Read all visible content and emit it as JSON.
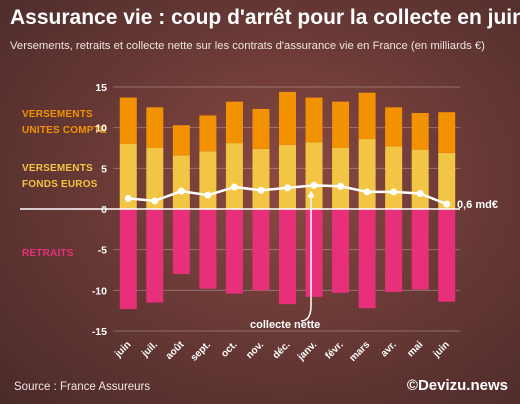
{
  "header": {
    "title": "Assurance vie : coup d'arrêt pour la collecte en juin",
    "subtitle": "Versements, retraits et collecte nette sur les contrats d'assurance vie en France (en milliards €)"
  },
  "legend_labels": {
    "versements_uc_line1": "VERSEMENTS",
    "versements_uc_line2": "UNITES COMPTE",
    "versements_fe_line1": "VERSEMENTS",
    "versements_fe_line2": "FONDS EUROS",
    "retraits": "RETRAITS"
  },
  "annotations": {
    "collecte_nette": "collecte nette",
    "last_value": "0,6 md€"
  },
  "footer": {
    "source": "Source : France Assureurs",
    "brand": "©Devizu.news"
  },
  "colors": {
    "unites_compte": "#f39200",
    "fonds_euros": "#f2c544",
    "retraits": "#e8307a",
    "collecte_nette": "#ffffff"
  },
  "chart_data": {
    "type": "bar",
    "categories": [
      "juin",
      "juil.",
      "août",
      "sept.",
      "oct.",
      "nov.",
      "déc.",
      "janv.",
      "févr.",
      "mars",
      "avr.",
      "mai",
      "juin"
    ],
    "series": [
      {
        "name": "VERSEMENTS FONDS EUROS",
        "values": [
          8.0,
          7.5,
          6.6,
          7.1,
          8.1,
          7.4,
          7.9,
          8.2,
          7.5,
          8.6,
          7.7,
          7.3,
          6.9
        ]
      },
      {
        "name": "VERSEMENTS UNITES COMPTE",
        "values": [
          5.7,
          5.0,
          3.7,
          4.4,
          5.1,
          4.9,
          6.5,
          5.5,
          5.7,
          5.7,
          4.8,
          4.5,
          5.0
        ]
      },
      {
        "name": "RETRAITS",
        "values": [
          -12.3,
          -11.5,
          -8.0,
          -9.8,
          -10.4,
          -10.0,
          -11.7,
          -10.8,
          -10.3,
          -12.2,
          -10.2,
          -9.9,
          -11.4
        ]
      },
      {
        "name": "collecte nette",
        "values": [
          1.3,
          1.0,
          2.2,
          1.7,
          2.7,
          2.3,
          2.6,
          2.9,
          2.8,
          2.1,
          2.1,
          1.9,
          0.6
        ]
      }
    ],
    "ylim": [
      -15,
      15
    ],
    "yticks": [
      -15,
      -10,
      -5,
      0,
      5,
      10,
      15
    ],
    "grid": true
  }
}
